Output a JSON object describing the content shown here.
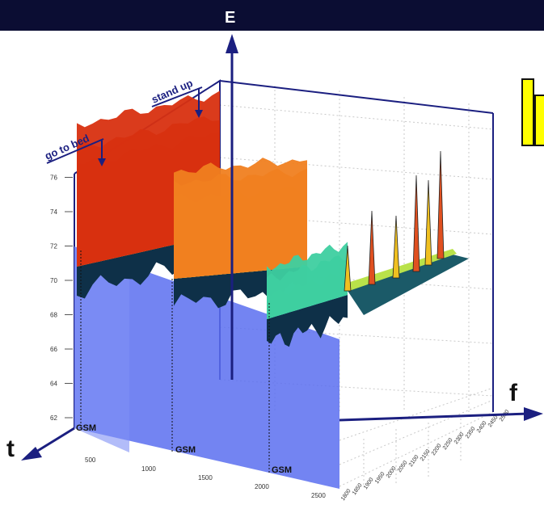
{
  "header": {
    "bar_color": "#0b0d33"
  },
  "logo_fragment": {
    "fill": "#ffff00",
    "stroke": "#111111"
  },
  "chart_data": {
    "type": "area",
    "title": "",
    "axis_labels": {
      "vertical": "E",
      "time": "t",
      "frequency": "f"
    },
    "annotations": [
      "go to bed",
      "stand up"
    ],
    "band_labels": [
      "GSM",
      "GSM",
      "GSM"
    ],
    "z_ticks": [
      "62",
      "64",
      "66",
      "68",
      "70",
      "72",
      "74",
      "76"
    ],
    "t_ticks": [
      "500",
      "1000",
      "1500",
      "2000",
      "2500"
    ],
    "f_ticks": [
      "1800",
      "1850",
      "1900",
      "1950",
      "2000",
      "2050",
      "2100",
      "2150",
      "2200",
      "2250",
      "2300",
      "2350",
      "2400",
      "2450",
      "2500"
    ],
    "colormap": [
      "#1a2a6a",
      "#1e5aa8",
      "#21a3c8",
      "#3ecfa0",
      "#b9e24a",
      "#f0d020",
      "#f08020",
      "#d83010"
    ],
    "blocks": [
      {
        "name": "first GSM band",
        "levels": [
          68,
          71,
          73,
          74.5,
          76.5
        ]
      },
      {
        "name": "second GSM band",
        "levels": [
          67,
          69,
          71,
          72.5,
          73.5
        ]
      },
      {
        "name": "third GSM band",
        "levels": [
          66,
          67.5,
          68.5
        ]
      }
    ],
    "spikes_level": [
      70,
      72.5,
      71.5,
      74.5,
      73.5,
      75.5
    ],
    "grid": true
  }
}
